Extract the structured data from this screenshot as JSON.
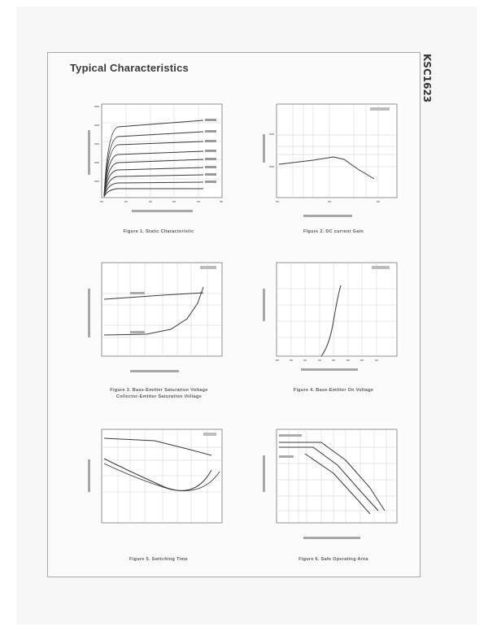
{
  "page": {
    "title": "Typical Characteristics",
    "part_number": "KSC1623",
    "footer_left": "",
    "footer_right": ""
  },
  "figures": [
    {
      "id": "fig1",
      "caption": "Figure 1. Static Characteristic"
    },
    {
      "id": "fig2",
      "caption": "Figure 2. DC current Gain"
    },
    {
      "id": "fig3",
      "caption": "Figure 3. Base-Emitter Saturation Voltage",
      "caption2": "Collector-Emitter Saturation Voltage"
    },
    {
      "id": "fig4",
      "caption": "Figure 4. Base-Emitter On Voltage"
    },
    {
      "id": "fig5",
      "caption": "Figure 5. Switching Time"
    },
    {
      "id": "fig6",
      "caption": "Figure 6. Safe Operating Area"
    }
  ],
  "colors": {
    "grid": "#c9c9c9",
    "curve": "#3a3a3a",
    "frame": "#a9a9a9"
  }
}
